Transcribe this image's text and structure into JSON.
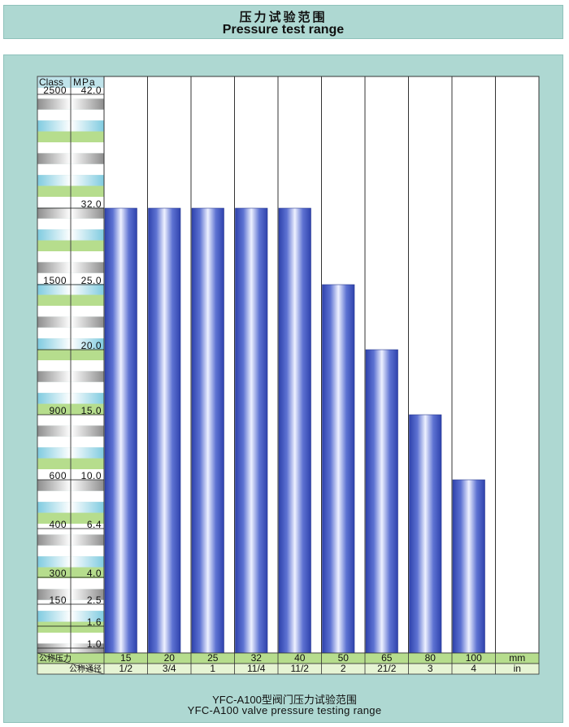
{
  "header": {
    "title_cn": "压力试验范围",
    "title_en": "Pressure test range"
  },
  "chart_data": {
    "type": "bar",
    "ylabel_class": "Class",
    "ylabel_mpa": "MPa",
    "ylim": [
      1.0,
      42.0
    ],
    "y_ticks": [
      {
        "mpa": 42.0,
        "mpa_label": "42.0",
        "class_label": "2500"
      },
      {
        "mpa": 32.0,
        "mpa_label": "32.0",
        "class_label": ""
      },
      {
        "mpa": 25.0,
        "mpa_label": "25.0",
        "class_label": "1500"
      },
      {
        "mpa": 20.0,
        "mpa_label": "20.0",
        "class_label": ""
      },
      {
        "mpa": 15.0,
        "mpa_label": "15.0",
        "class_label": "900"
      },
      {
        "mpa": 10.0,
        "mpa_label": "10.0",
        "class_label": "600"
      },
      {
        "mpa": 6.4,
        "mpa_label": "6.4",
        "class_label": "400"
      },
      {
        "mpa": 4.0,
        "mpa_label": "4.0",
        "class_label": "300"
      },
      {
        "mpa": 2.5,
        "mpa_label": "2.5",
        "class_label": "150"
      },
      {
        "mpa": 1.6,
        "mpa_label": "1.6",
        "class_label": ""
      },
      {
        "mpa": 1.0,
        "mpa_label": "1.0",
        "class_label": ""
      }
    ],
    "x_row1_label": "公称压力",
    "x_row2_label": "公称通径",
    "categories_mm": [
      "15",
      "20",
      "25",
      "32",
      "40",
      "50",
      "65",
      "80",
      "100"
    ],
    "categories_in": [
      "1/2",
      "3/4",
      "1",
      "11/4",
      "11/2",
      "2",
      "21/2",
      "3",
      "4"
    ],
    "unit_mm": "mm",
    "unit_in": "in",
    "values": [
      32.0,
      32.0,
      32.0,
      32.0,
      32.0,
      25.0,
      20.0,
      15.0,
      10.0
    ],
    "bar_color": "#3a4fb8"
  },
  "caption": {
    "cn": "YFC-A100型阀门压力试验范围",
    "en": "YFC-A100 valve pressure testing range"
  }
}
